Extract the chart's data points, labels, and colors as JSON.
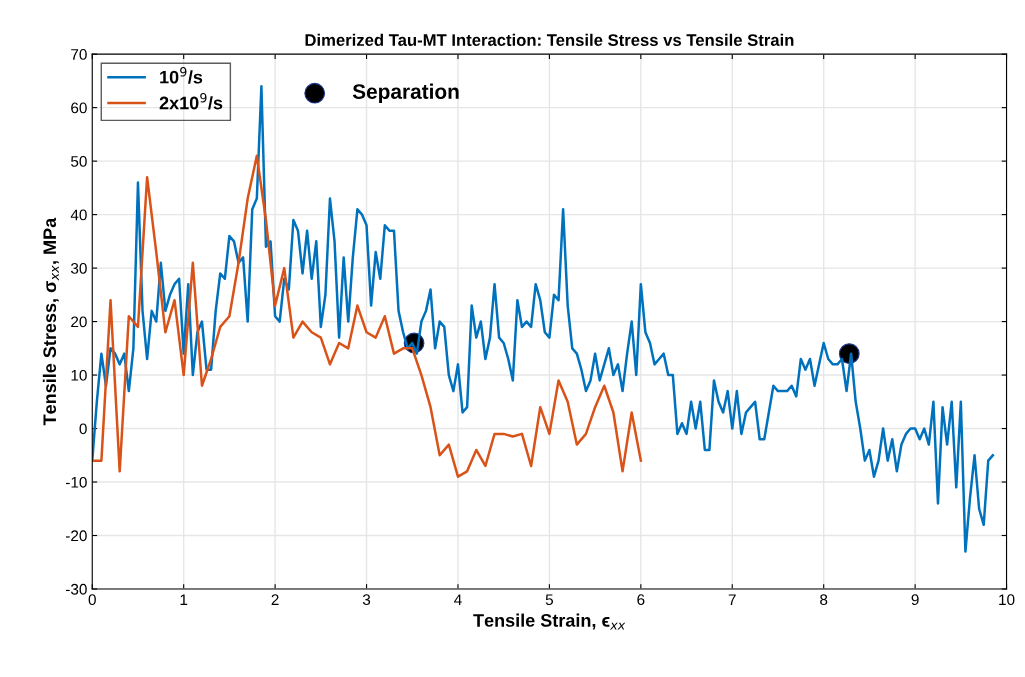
{
  "chart_data": {
    "type": "line",
    "title": "Dimerized Tau-MT Interaction: Tensile Stress vs Tensile Strain",
    "xlabel": "Tensile Strain, ϵ$_{xx}$",
    "ylabel": "Tensile Stress, σ$_{xx}$, MPa",
    "xlim": [
      0,
      10
    ],
    "ylim": [
      -30,
      70
    ],
    "xticks": [
      0,
      1,
      2,
      3,
      4,
      5,
      6,
      7,
      8,
      9,
      10
    ],
    "yticks": [
      -30,
      -20,
      -10,
      0,
      10,
      20,
      30,
      40,
      50,
      60,
      70
    ],
    "grid": true,
    "legend": "top left",
    "line_style": "solid",
    "marker": "none",
    "series": [
      {
        "name": "10$^{9}$/s",
        "color": "#0072bd",
        "x": [
          0,
          0.05,
          0.1,
          0.15,
          0.2,
          0.25,
          0.3,
          0.35,
          0.4,
          0.45,
          0.5,
          0.55,
          0.6,
          0.65,
          0.7,
          0.75,
          0.8,
          0.85,
          0.9,
          0.95,
          1.0,
          1.05,
          1.1,
          1.15,
          1.2,
          1.25,
          1.3,
          1.35,
          1.4,
          1.45,
          1.5,
          1.55,
          1.6,
          1.65,
          1.7,
          1.75,
          1.8,
          1.85,
          1.9,
          1.95,
          2.0,
          2.05,
          2.1,
          2.15,
          2.2,
          2.25,
          2.3,
          2.35,
          2.4,
          2.45,
          2.5,
          2.55,
          2.6,
          2.65,
          2.7,
          2.75,
          2.8,
          2.85,
          2.9,
          2.95,
          3.0,
          3.05,
          3.1,
          3.15,
          3.2,
          3.25,
          3.3,
          3.35,
          3.4,
          3.45,
          3.5,
          3.55,
          3.6,
          3.65,
          3.7,
          3.75,
          3.8,
          3.85,
          3.9,
          3.95,
          4.0,
          4.05,
          4.1,
          4.15,
          4.2,
          4.25,
          4.3,
          4.35,
          4.4,
          4.45,
          4.5,
          4.55,
          4.6,
          4.65,
          4.7,
          4.75,
          4.8,
          4.85,
          4.9,
          4.95,
          5.0,
          5.05,
          5.1,
          5.15,
          5.2,
          5.25,
          5.3,
          5.35,
          5.4,
          5.45,
          5.5,
          5.55,
          5.6,
          5.65,
          5.7,
          5.75,
          5.8,
          5.85,
          5.9,
          5.95,
          6.0,
          6.05,
          6.1,
          6.15,
          6.2,
          6.25,
          6.3,
          6.35,
          6.4,
          6.45,
          6.5,
          6.55,
          6.6,
          6.65,
          6.7,
          6.75,
          6.8,
          6.85,
          6.9,
          6.95,
          7.0,
          7.05,
          7.1,
          7.15,
          7.2,
          7.25,
          7.3,
          7.35,
          7.4,
          7.45,
          7.5,
          7.55,
          7.6,
          7.65,
          7.7,
          7.75,
          7.8,
          7.85,
          7.9,
          7.95,
          8.0,
          8.05,
          8.1,
          8.15,
          8.2,
          8.25,
          8.3,
          8.35,
          8.4,
          8.45,
          8.5,
          8.55,
          8.6,
          8.65,
          8.7,
          8.75,
          8.8,
          8.85,
          8.9,
          8.95,
          9.0,
          9.05,
          9.1,
          9.15,
          9.2,
          9.25,
          9.3,
          9.35,
          9.4,
          9.45,
          9.5,
          9.55,
          9.6,
          9.65,
          9.7,
          9.75,
          9.8,
          9.85
        ],
        "values": [
          -6,
          5,
          14,
          8,
          15,
          14,
          12,
          14,
          7,
          15,
          46,
          22,
          13,
          22,
          20,
          31,
          22,
          25,
          27,
          28,
          14,
          27,
          10,
          18,
          20,
          11,
          11,
          22,
          29,
          28,
          36,
          35,
          31,
          32,
          20,
          41,
          43,
          64,
          34,
          35,
          21,
          20,
          28,
          26,
          39,
          37,
          29,
          37,
          28,
          35,
          19,
          25,
          43,
          35,
          17,
          32,
          20,
          32,
          41,
          40,
          38,
          23,
          33,
          28,
          38,
          37,
          37,
          22,
          18,
          15,
          16,
          14,
          20,
          22,
          26,
          15,
          20,
          19,
          10,
          7,
          12,
          3,
          4,
          23,
          17,
          20,
          13,
          17,
          27,
          17,
          16,
          13,
          9,
          24,
          19,
          20,
          19,
          27,
          24,
          18,
          17,
          25,
          24,
          41,
          23,
          15,
          14,
          11,
          7,
          9,
          14,
          9,
          12,
          15,
          10,
          12,
          7,
          14,
          20,
          10,
          27,
          18,
          16,
          12,
          13,
          14,
          10,
          10,
          -1,
          1,
          -1,
          5,
          0,
          5,
          -4,
          -4,
          9,
          5,
          3,
          7,
          0,
          7,
          -1,
          3,
          4,
          5,
          -2,
          -2,
          3,
          8,
          7,
          7,
          7,
          8,
          6,
          13,
          11,
          13,
          8,
          12,
          16,
          13,
          12,
          12,
          13,
          7,
          14,
          5,
          0,
          -6,
          -4,
          -9,
          -6,
          0,
          -6,
          -2,
          -8,
          -3,
          -1,
          0,
          0,
          -2,
          0,
          -3,
          5,
          -14,
          4,
          -3,
          5,
          -11,
          5,
          -23,
          -13,
          -5,
          -15,
          -18,
          -6,
          -5
        ]
      },
      {
        "name": "2x10$^{9}$/s",
        "color": "#d95319",
        "x": [
          0,
          0.1,
          0.2,
          0.3,
          0.4,
          0.5,
          0.6,
          0.7,
          0.8,
          0.9,
          1.0,
          1.1,
          1.2,
          1.3,
          1.4,
          1.5,
          1.6,
          1.7,
          1.8,
          1.9,
          2.0,
          2.1,
          2.2,
          2.3,
          2.4,
          2.5,
          2.6,
          2.7,
          2.8,
          2.9,
          3.0,
          3.1,
          3.2,
          3.3,
          3.4,
          3.5,
          3.6,
          3.7,
          3.8,
          3.9,
          4.0,
          4.1,
          4.2,
          4.3,
          4.4,
          4.5,
          4.6,
          4.7,
          4.8,
          4.9,
          5.0,
          5.1,
          5.2,
          5.3,
          5.4,
          5.5,
          5.6,
          5.7,
          5.8,
          5.9,
          6.0
        ],
        "values": [
          -6,
          -6,
          24,
          -8,
          21,
          19,
          47,
          33,
          18,
          24,
          10,
          31,
          8,
          13,
          19,
          21,
          31,
          43,
          51,
          39,
          23,
          30,
          17,
          20,
          18,
          17,
          12,
          16,
          15,
          23,
          18,
          17,
          21,
          14,
          15,
          15,
          10,
          4,
          -5,
          -3,
          -9,
          -8,
          -4,
          -7,
          -1,
          -1,
          -1.5,
          -1,
          -7,
          4,
          -1,
          9,
          5,
          -3,
          -1,
          4,
          8,
          3,
          -8,
          3,
          -6
        ]
      },
      {
        "name": "Separation",
        "type": "scatter",
        "marker": "circle",
        "color": "#000000",
        "x": [
          3.52,
          8.28
        ],
        "values": [
          16,
          14
        ]
      }
    ]
  }
}
